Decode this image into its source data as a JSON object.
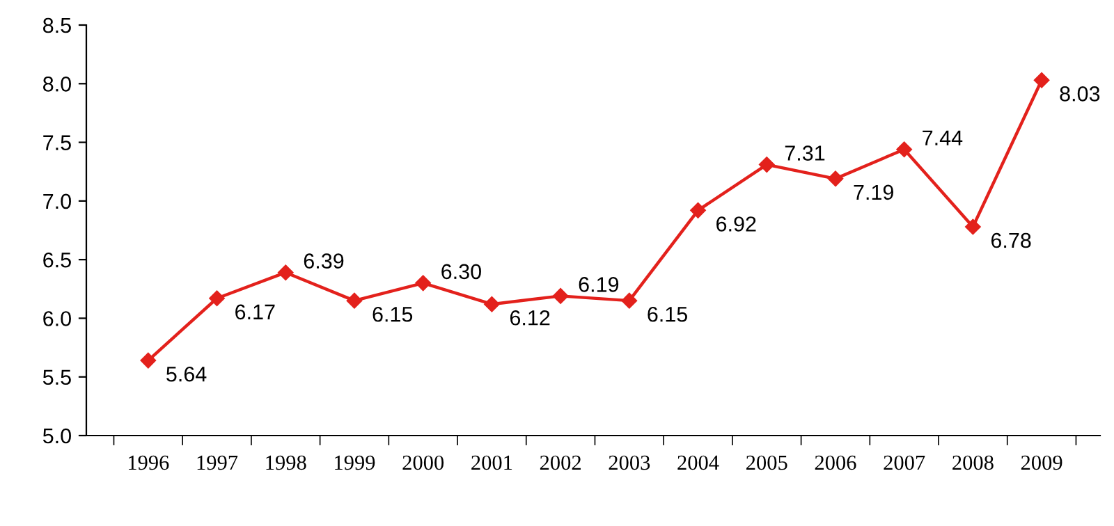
{
  "chart_data": {
    "type": "line",
    "categories": [
      "1996",
      "1997",
      "1998",
      "1999",
      "2000",
      "2001",
      "2002",
      "2003",
      "2004",
      "2005",
      "2006",
      "2007",
      "2008",
      "2009"
    ],
    "series": [
      {
        "color": "#e3211c",
        "values": [
          5.64,
          6.17,
          6.39,
          6.15,
          6.3,
          6.12,
          6.19,
          6.15,
          6.92,
          7.31,
          7.19,
          7.44,
          6.78,
          8.03
        ],
        "value_labels": [
          "5.64",
          "6.17",
          "6.39",
          "6.15",
          "6.30",
          "6.12",
          "6.19",
          "6.15",
          "6.92",
          "7.31",
          "7.19",
          "7.44",
          "6.78",
          "8.03"
        ]
      }
    ],
    "ylim": [
      5.0,
      8.5
    ],
    "yticks": [
      {
        "value": 5.0,
        "label": "5.0"
      },
      {
        "value": 5.5,
        "label": "5.5"
      },
      {
        "value": 6.0,
        "label": "6.0"
      },
      {
        "value": 6.5,
        "label": "6.5"
      },
      {
        "value": 7.0,
        "label": "7.0"
      },
      {
        "value": 7.5,
        "label": "7.5"
      },
      {
        "value": 8.0,
        "label": "8.0"
      },
      {
        "value": 8.5,
        "label": "8.5"
      }
    ],
    "grid": false,
    "legend": false,
    "marker": "diamond",
    "line_style": "solid"
  }
}
